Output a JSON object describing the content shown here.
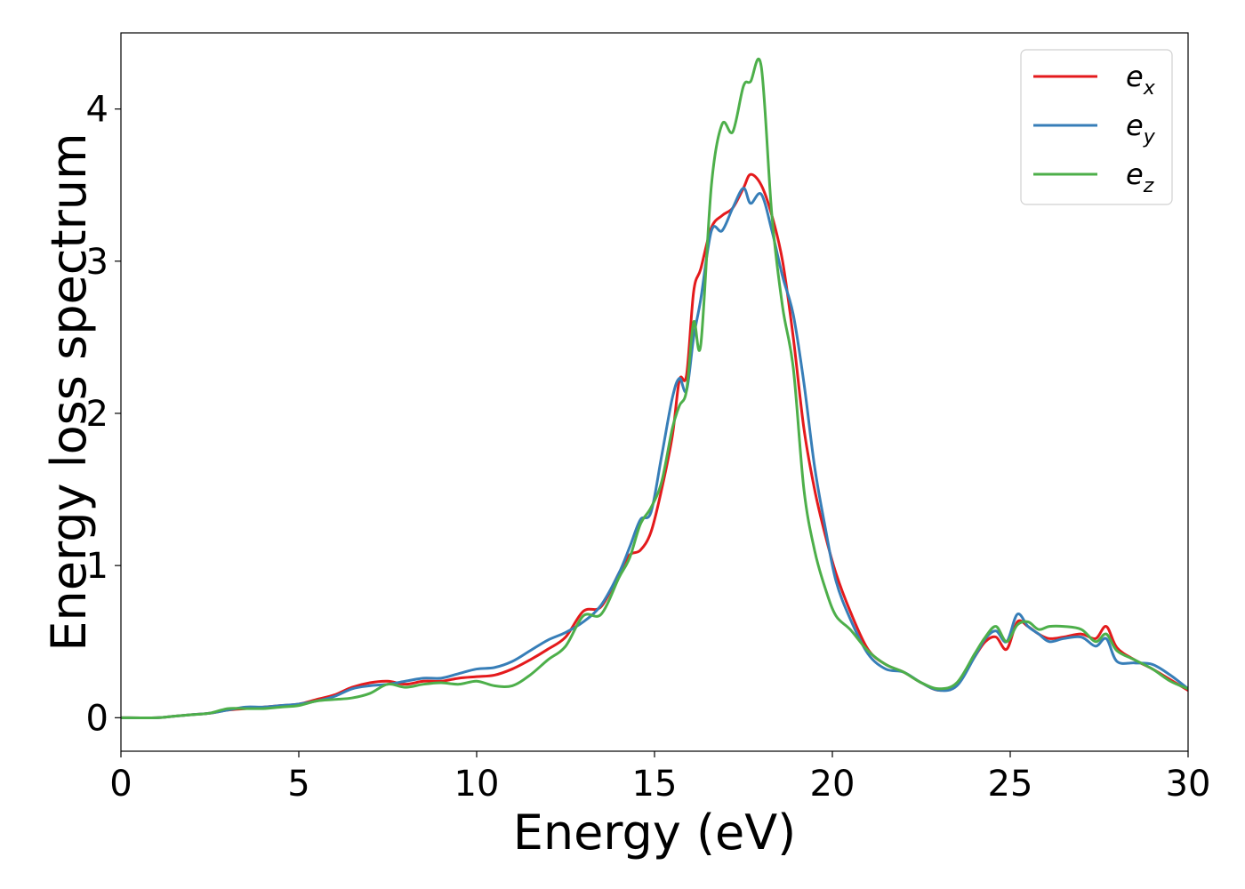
{
  "chart_data": {
    "type": "line",
    "title": "",
    "xlabel": "Energy (eV)",
    "ylabel": "Energy loss spectrum",
    "xlim": [
      0,
      30
    ],
    "ylim": [
      -0.22,
      4.5
    ],
    "xticks": [
      0,
      5,
      10,
      15,
      20,
      25,
      30
    ],
    "yticks": [
      0,
      1,
      2,
      3,
      4
    ],
    "grid": false,
    "legend_position": "top-right",
    "series": [
      {
        "name": "e_x",
        "legend_base": "e",
        "legend_sub": "x",
        "color": "#e41a1c",
        "x": [
          0,
          1,
          1.5,
          2,
          2.5,
          3,
          3.5,
          4,
          4.5,
          5,
          5.5,
          6,
          6.5,
          7,
          7.5,
          8,
          8.5,
          9,
          9.5,
          10,
          10.5,
          11,
          11.5,
          12,
          12.5,
          13,
          13.5,
          14,
          14.3,
          14.6,
          14.9,
          15.2,
          15.5,
          15.7,
          15.9,
          16.1,
          16.3,
          16.6,
          16.9,
          17.2,
          17.5,
          17.7,
          18.0,
          18.3,
          18.6,
          18.9,
          19.2,
          19.5,
          19.8,
          20.1,
          20.5,
          21,
          21.5,
          22,
          22.5,
          23,
          23.5,
          24,
          24.3,
          24.6,
          24.9,
          25.2,
          25.5,
          25.8,
          26.1,
          26.5,
          27,
          27.4,
          27.7,
          28,
          28.5,
          29,
          29.5,
          30
        ],
        "y": [
          0,
          0,
          0.01,
          0.02,
          0.03,
          0.05,
          0.06,
          0.07,
          0.08,
          0.09,
          0.12,
          0.15,
          0.2,
          0.23,
          0.24,
          0.22,
          0.24,
          0.24,
          0.26,
          0.27,
          0.28,
          0.32,
          0.38,
          0.45,
          0.53,
          0.7,
          0.73,
          0.95,
          1.07,
          1.1,
          1.22,
          1.5,
          1.85,
          2.22,
          2.25,
          2.8,
          2.95,
          3.22,
          3.3,
          3.35,
          3.48,
          3.57,
          3.5,
          3.3,
          3.0,
          2.5,
          1.9,
          1.5,
          1.2,
          0.95,
          0.7,
          0.45,
          0.35,
          0.3,
          0.23,
          0.18,
          0.22,
          0.4,
          0.5,
          0.53,
          0.45,
          0.63,
          0.6,
          0.55,
          0.52,
          0.53,
          0.55,
          0.52,
          0.6,
          0.46,
          0.38,
          0.32,
          0.25,
          0.18
        ]
      },
      {
        "name": "e_y",
        "legend_base": "e",
        "legend_sub": "y",
        "color": "#377eb8",
        "x": [
          0,
          1,
          1.5,
          2,
          2.5,
          3,
          3.5,
          4,
          4.5,
          5,
          5.5,
          6,
          6.5,
          7,
          7.5,
          8,
          8.5,
          9,
          9.5,
          10,
          10.5,
          11,
          11.5,
          12,
          12.5,
          13,
          13.5,
          14,
          14.3,
          14.6,
          14.9,
          15.2,
          15.5,
          15.7,
          15.9,
          16.1,
          16.3,
          16.6,
          16.9,
          17.2,
          17.5,
          17.7,
          18.0,
          18.3,
          18.6,
          18.9,
          19.2,
          19.5,
          19.8,
          20.1,
          20.5,
          21,
          21.5,
          22,
          22.5,
          23,
          23.5,
          24,
          24.3,
          24.6,
          24.9,
          25.2,
          25.5,
          25.8,
          26.1,
          26.5,
          27,
          27.4,
          27.7,
          28,
          28.5,
          29,
          29.5,
          30
        ],
        "y": [
          0,
          0,
          0.01,
          0.02,
          0.03,
          0.05,
          0.07,
          0.07,
          0.08,
          0.09,
          0.11,
          0.14,
          0.19,
          0.21,
          0.22,
          0.24,
          0.26,
          0.26,
          0.29,
          0.32,
          0.33,
          0.37,
          0.44,
          0.51,
          0.56,
          0.63,
          0.74,
          0.95,
          1.12,
          1.3,
          1.35,
          1.72,
          2.1,
          2.23,
          2.15,
          2.5,
          2.75,
          3.2,
          3.2,
          3.35,
          3.48,
          3.38,
          3.44,
          3.2,
          2.9,
          2.65,
          2.2,
          1.65,
          1.25,
          0.9,
          0.65,
          0.42,
          0.32,
          0.3,
          0.23,
          0.18,
          0.21,
          0.4,
          0.52,
          0.57,
          0.5,
          0.68,
          0.6,
          0.55,
          0.5,
          0.52,
          0.53,
          0.47,
          0.52,
          0.37,
          0.36,
          0.35,
          0.28,
          0.19
        ]
      },
      {
        "name": "e_z",
        "legend_base": "e",
        "legend_sub": "z",
        "color": "#4daf4a",
        "x": [
          0,
          1,
          1.5,
          2,
          2.5,
          3,
          3.5,
          4,
          4.5,
          5,
          5.5,
          6,
          6.5,
          7,
          7.5,
          8,
          8.5,
          9,
          9.5,
          10,
          10.5,
          11,
          11.5,
          12,
          12.5,
          13,
          13.5,
          14,
          14.3,
          14.6,
          14.9,
          15.2,
          15.5,
          15.7,
          15.9,
          16.1,
          16.3,
          16.6,
          16.9,
          17.2,
          17.5,
          17.7,
          18.0,
          18.3,
          18.6,
          18.9,
          19.2,
          19.5,
          19.8,
          20.1,
          20.5,
          21,
          21.5,
          22,
          22.5,
          23,
          23.5,
          24,
          24.3,
          24.6,
          24.9,
          25.2,
          25.5,
          25.8,
          26.1,
          26.5,
          27,
          27.4,
          27.7,
          28,
          28.5,
          29,
          29.5,
          30
        ],
        "y": [
          0,
          0,
          0.01,
          0.02,
          0.03,
          0.06,
          0.06,
          0.06,
          0.07,
          0.08,
          0.11,
          0.12,
          0.13,
          0.16,
          0.22,
          0.2,
          0.22,
          0.23,
          0.22,
          0.24,
          0.21,
          0.21,
          0.28,
          0.38,
          0.47,
          0.67,
          0.68,
          0.92,
          1.05,
          1.27,
          1.38,
          1.55,
          1.9,
          2.05,
          2.15,
          2.6,
          2.45,
          3.5,
          3.9,
          3.85,
          4.15,
          4.18,
          4.28,
          3.3,
          2.7,
          2.3,
          1.5,
          1.1,
          0.85,
          0.67,
          0.58,
          0.44,
          0.35,
          0.3,
          0.23,
          0.19,
          0.23,
          0.42,
          0.53,
          0.6,
          0.5,
          0.61,
          0.63,
          0.58,
          0.6,
          0.6,
          0.58,
          0.5,
          0.55,
          0.44,
          0.38,
          0.32,
          0.24,
          0.19
        ]
      }
    ]
  }
}
